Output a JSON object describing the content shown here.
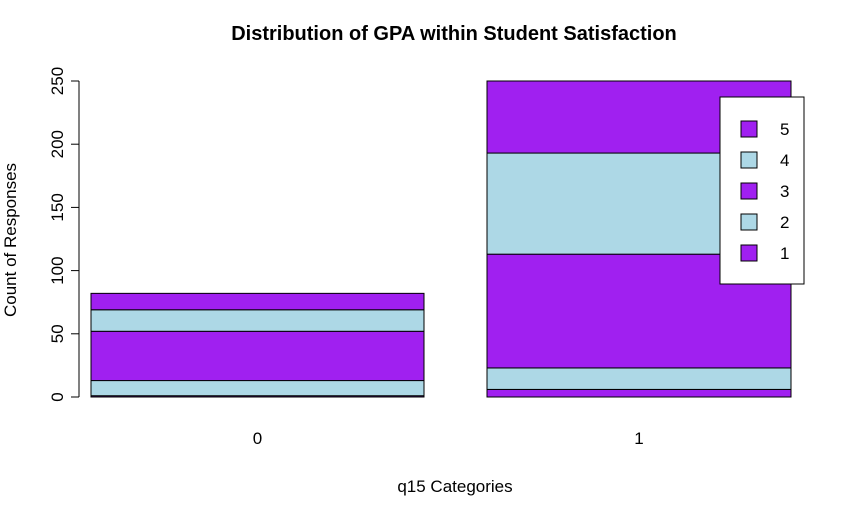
{
  "chart_data": {
    "type": "bar",
    "stacked": true,
    "title": "Distribution of GPA within Student Satisfaction",
    "xlabel": "q15 Categories",
    "ylabel": "Count of Responses",
    "categories": [
      "0",
      "1"
    ],
    "ylim": [
      0,
      250
    ],
    "yticks": [
      "0",
      "50",
      "100",
      "150",
      "200",
      "250"
    ],
    "grid": false,
    "legend_position": "top-right",
    "series": [
      {
        "name": "1",
        "color": "#a020f0",
        "values": [
          1,
          6
        ]
      },
      {
        "name": "2",
        "color": "#add8e6",
        "values": [
          12,
          17
        ]
      },
      {
        "name": "3",
        "color": "#a020f0",
        "values": [
          39,
          90
        ]
      },
      {
        "name": "4",
        "color": "#add8e6",
        "values": [
          17,
          80
        ]
      },
      {
        "name": "5",
        "color": "#a020f0",
        "values": [
          13,
          57
        ]
      }
    ],
    "legend_order": [
      "5",
      "4",
      "3",
      "2",
      "1"
    ]
  }
}
